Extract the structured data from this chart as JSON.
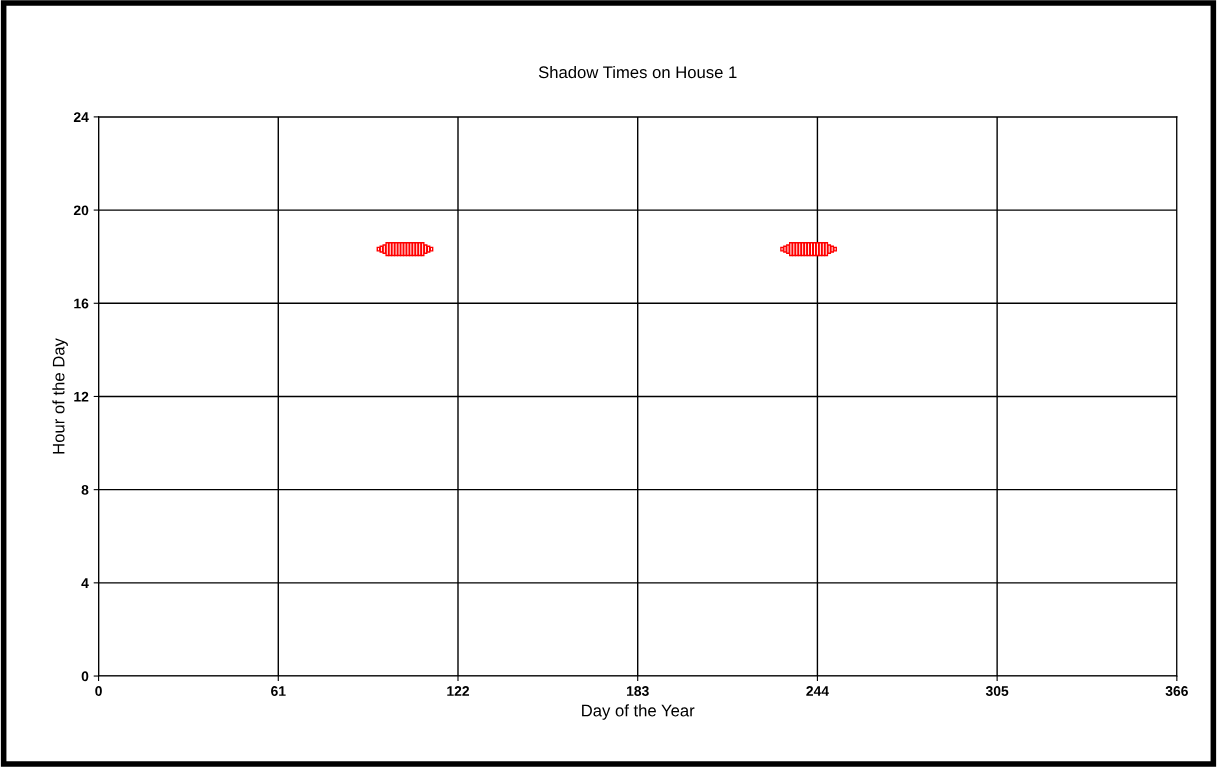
{
  "chart_data": {
    "type": "bar",
    "title": "Shadow Times on House 1",
    "xlabel": "Day of the Year",
    "ylabel": "Hour of the Day",
    "x": [
      95,
      96,
      97,
      98,
      99,
      100,
      101,
      102,
      103,
      104,
      105,
      106,
      107,
      108,
      109,
      110,
      111,
      112,
      113,
      232,
      233,
      234,
      235,
      236,
      237,
      238,
      239,
      240,
      241,
      242,
      243,
      244,
      245,
      246,
      247,
      248,
      249,
      250
    ],
    "base": [
      18.25,
      18.2,
      18.15,
      18.05,
      18.05,
      18.05,
      18.05,
      18.05,
      18.05,
      18.05,
      18.05,
      18.05,
      18.05,
      18.05,
      18.05,
      18.05,
      18.15,
      18.2,
      18.25,
      18.25,
      18.2,
      18.15,
      18.05,
      18.05,
      18.05,
      18.05,
      18.05,
      18.05,
      18.05,
      18.05,
      18.05,
      18.05,
      18.05,
      18.05,
      18.05,
      18.15,
      18.2,
      18.25
    ],
    "values": [
      0.15,
      0.25,
      0.35,
      0.55,
      0.55,
      0.55,
      0.55,
      0.55,
      0.55,
      0.55,
      0.55,
      0.55,
      0.55,
      0.55,
      0.55,
      0.55,
      0.35,
      0.25,
      0.15,
      0.15,
      0.25,
      0.35,
      0.55,
      0.55,
      0.55,
      0.55,
      0.55,
      0.55,
      0.55,
      0.55,
      0.55,
      0.55,
      0.55,
      0.55,
      0.55,
      0.35,
      0.25,
      0.15
    ],
    "color": "#ff0000",
    "xlim": [
      0,
      366
    ],
    "xticks": [
      0,
      61,
      122,
      183,
      244,
      305,
      366
    ],
    "ylim": [
      0,
      24
    ],
    "yticks": [
      0,
      4,
      8,
      12,
      16,
      20,
      24
    ],
    "grid": true
  }
}
